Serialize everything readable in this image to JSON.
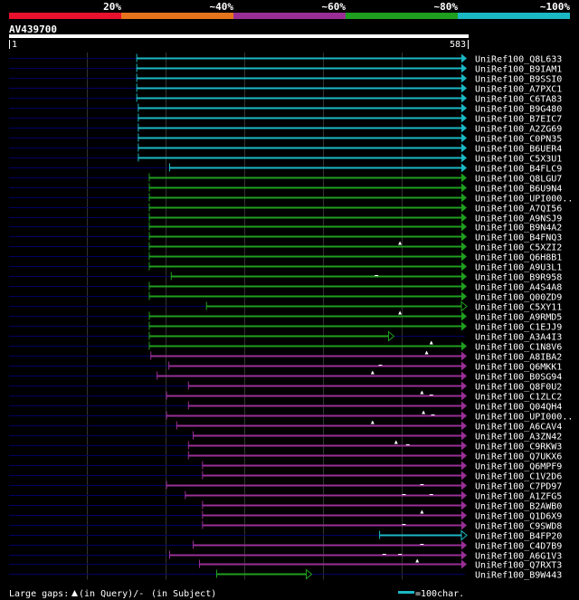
{
  "header": {
    "scale_labels": [
      "20%",
      "~40%",
      "~60%",
      "~80%",
      "~100%"
    ],
    "scale_colors": [
      "#e8112d",
      "#e6741c",
      "#992f96",
      "#1f9e1f",
      "#1bb8c4"
    ],
    "query_name": "AV439700",
    "ruler_start": "1",
    "ruler_end": "583"
  },
  "colors": {
    "cyan": "#1bb8c4",
    "green": "#1f9e1f",
    "purple": "#992f96",
    "guide": "#000066",
    "grid": "#333333"
  },
  "query_length": 583,
  "hits": [
    {
      "label": "UniRef100_Q8L633",
      "color": "cyan",
      "start": 164,
      "end": 583,
      "arrow": "filled",
      "marks": []
    },
    {
      "label": "UniRef100_B9IAM1",
      "color": "cyan",
      "start": 164,
      "end": 583,
      "arrow": "filled",
      "marks": []
    },
    {
      "label": "UniRef100_B9SSI0",
      "color": "cyan",
      "start": 164,
      "end": 583,
      "arrow": "filled",
      "marks": []
    },
    {
      "label": "UniRef100_A7PXC1",
      "color": "cyan",
      "start": 164,
      "end": 583,
      "arrow": "filled",
      "marks": []
    },
    {
      "label": "UniRef100_C6TA83",
      "color": "cyan",
      "start": 164,
      "end": 583,
      "arrow": "filled",
      "marks": []
    },
    {
      "label": "UniRef100_B9G480",
      "color": "cyan",
      "start": 166,
      "end": 583,
      "arrow": "filled",
      "marks": []
    },
    {
      "label": "UniRef100_B7EIC7",
      "color": "cyan",
      "start": 166,
      "end": 583,
      "arrow": "filled",
      "marks": []
    },
    {
      "label": "UniRef100_A2ZG69",
      "color": "cyan",
      "start": 166,
      "end": 583,
      "arrow": "filled",
      "marks": []
    },
    {
      "label": "UniRef100_C0PN35",
      "color": "cyan",
      "start": 166,
      "end": 583,
      "arrow": "filled",
      "marks": []
    },
    {
      "label": "UniRef100_B6UER4",
      "color": "cyan",
      "start": 166,
      "end": 583,
      "arrow": "filled",
      "marks": []
    },
    {
      "label": "UniRef100_C5X3U1",
      "color": "cyan",
      "start": 166,
      "end": 583,
      "arrow": "filled",
      "marks": []
    },
    {
      "label": "UniRef100_B4FLC9",
      "color": "cyan",
      "start": 206,
      "end": 583,
      "arrow": "filled",
      "marks": []
    },
    {
      "label": "UniRef100_Q8LGU7",
      "color": "green",
      "start": 180,
      "end": 583,
      "arrow": "filled",
      "marks": []
    },
    {
      "label": "UniRef100_B6U9N4",
      "color": "green",
      "start": 180,
      "end": 583,
      "arrow": "filled",
      "marks": []
    },
    {
      "label": "UniRef100_UPI000..",
      "color": "green",
      "start": 180,
      "end": 583,
      "arrow": "filled",
      "marks": []
    },
    {
      "label": "UniRef100_A7QI56",
      "color": "green",
      "start": 180,
      "end": 583,
      "arrow": "filled",
      "marks": []
    },
    {
      "label": "UniRef100_A9NSJ9",
      "color": "green",
      "start": 180,
      "end": 583,
      "arrow": "filled",
      "marks": []
    },
    {
      "label": "UniRef100_B9N4A2",
      "color": "green",
      "start": 180,
      "end": 583,
      "arrow": "filled",
      "marks": []
    },
    {
      "label": "UniRef100_B4FNQ3",
      "color": "green",
      "start": 180,
      "end": 583,
      "arrow": "filled",
      "marks": []
    },
    {
      "label": "UniRef100_C5XZI2",
      "color": "green",
      "start": 180,
      "end": 583,
      "arrow": "filled",
      "marks": [
        {
          "type": "tri",
          "pos": 500
        }
      ]
    },
    {
      "label": "UniRef100_Q6H8B1",
      "color": "green",
      "start": 180,
      "end": 583,
      "arrow": "filled",
      "marks": []
    },
    {
      "label": "UniRef100_A9U3L1",
      "color": "green",
      "start": 180,
      "end": 583,
      "arrow": "filled",
      "marks": []
    },
    {
      "label": "UniRef100_B9R958",
      "color": "green",
      "start": 208,
      "end": 583,
      "arrow": "filled",
      "marks": [
        {
          "type": "dash",
          "pos": 470
        }
      ]
    },
    {
      "label": "UniRef100_A4S4A8",
      "color": "green",
      "start": 180,
      "end": 583,
      "arrow": "filled",
      "marks": []
    },
    {
      "label": "UniRef100_Q00ZD9",
      "color": "green",
      "start": 180,
      "end": 583,
      "arrow": "filled",
      "marks": []
    },
    {
      "label": "UniRef100_C5XY11",
      "color": "green",
      "start": 253,
      "end": 583,
      "arrow": "outline",
      "marks": []
    },
    {
      "label": "UniRef100_A9RMD5",
      "color": "green",
      "start": 180,
      "end": 583,
      "arrow": "filled",
      "marks": [
        {
          "type": "tri",
          "pos": 500
        }
      ]
    },
    {
      "label": "UniRef100_C1EJJ9",
      "color": "green",
      "start": 180,
      "end": 583,
      "arrow": "filled",
      "marks": []
    },
    {
      "label": "UniRef100_A3A4I3",
      "color": "green",
      "start": 180,
      "end": 490,
      "arrow": "outline",
      "marks": []
    },
    {
      "label": "UniRef100_C1N8V6",
      "color": "green",
      "start": 180,
      "end": 583,
      "arrow": "filled",
      "marks": [
        {
          "type": "tri",
          "pos": 540
        }
      ]
    },
    {
      "label": "UniRef100_A8IBA2",
      "color": "purple",
      "start": 182,
      "end": 583,
      "arrow": "filled",
      "marks": [
        {
          "type": "tri",
          "pos": 534
        }
      ]
    },
    {
      "label": "UniRef100_Q6MKK1",
      "color": "purple",
      "start": 205,
      "end": 583,
      "arrow": "filled",
      "marks": [
        {
          "type": "dash",
          "pos": 475
        }
      ]
    },
    {
      "label": "UniRef100_B0SG94",
      "color": "purple",
      "start": 190,
      "end": 583,
      "arrow": "filled",
      "marks": [
        {
          "type": "tri",
          "pos": 465
        }
      ]
    },
    {
      "label": "UniRef100_Q8F0U2",
      "color": "purple",
      "start": 230,
      "end": 583,
      "arrow": "filled",
      "marks": []
    },
    {
      "label": "UniRef100_C1ZLC2",
      "color": "purple",
      "start": 202,
      "end": 583,
      "arrow": "filled",
      "marks": [
        {
          "type": "tri",
          "pos": 528
        },
        {
          "type": "dash",
          "pos": 540
        }
      ]
    },
    {
      "label": "UniRef100_Q04QH4",
      "color": "purple",
      "start": 230,
      "end": 583,
      "arrow": "filled",
      "marks": []
    },
    {
      "label": "UniRef100_UPI000..",
      "color": "purple",
      "start": 202,
      "end": 583,
      "arrow": "filled",
      "marks": [
        {
          "type": "tri",
          "pos": 530
        },
        {
          "type": "dash",
          "pos": 542
        }
      ]
    },
    {
      "label": "UniRef100_A6CAV4",
      "color": "purple",
      "start": 215,
      "end": 583,
      "arrow": "filled",
      "marks": [
        {
          "type": "tri",
          "pos": 465
        }
      ]
    },
    {
      "label": "UniRef100_A3ZN42",
      "color": "purple",
      "start": 236,
      "end": 583,
      "arrow": "filled",
      "marks": []
    },
    {
      "label": "UniRef100_C9RKW3",
      "color": "purple",
      "start": 230,
      "end": 583,
      "arrow": "filled",
      "marks": [
        {
          "type": "tri",
          "pos": 495
        },
        {
          "type": "dash",
          "pos": 510
        }
      ]
    },
    {
      "label": "UniRef100_Q7UKX6",
      "color": "purple",
      "start": 230,
      "end": 583,
      "arrow": "filled",
      "marks": []
    },
    {
      "label": "UniRef100_Q6MPF9",
      "color": "purple",
      "start": 248,
      "end": 583,
      "arrow": "filled",
      "marks": []
    },
    {
      "label": "UniRef100_C1V2D6",
      "color": "purple",
      "start": 248,
      "end": 583,
      "arrow": "filled",
      "marks": []
    },
    {
      "label": "UniRef100_C7PD97",
      "color": "purple",
      "start": 202,
      "end": 583,
      "arrow": "filled",
      "marks": [
        {
          "type": "dash",
          "pos": 528
        }
      ]
    },
    {
      "label": "UniRef100_A1ZFG5",
      "color": "purple",
      "start": 226,
      "end": 583,
      "arrow": "filled",
      "marks": [
        {
          "type": "dash",
          "pos": 505
        },
        {
          "type": "dash",
          "pos": 540
        }
      ]
    },
    {
      "label": "UniRef100_B2AWB0",
      "color": "purple",
      "start": 248,
      "end": 583,
      "arrow": "filled",
      "marks": []
    },
    {
      "label": "UniRef100_Q1D6X9",
      "color": "purple",
      "start": 248,
      "end": 583,
      "arrow": "filled",
      "marks": [
        {
          "type": "tri",
          "pos": 528
        }
      ]
    },
    {
      "label": "UniRef100_C9SWD8",
      "color": "purple",
      "start": 248,
      "end": 583,
      "arrow": "filled",
      "marks": [
        {
          "type": "dash",
          "pos": 505
        }
      ]
    },
    {
      "label": "UniRef100_B4FP20",
      "color": "cyan",
      "start": 474,
      "end": 583,
      "arrow": "outline",
      "marks": []
    },
    {
      "label": "UniRef100_C4D7B9",
      "color": "purple",
      "start": 236,
      "end": 583,
      "arrow": "filled",
      "marks": [
        {
          "type": "dash",
          "pos": 528
        }
      ]
    },
    {
      "label": "UniRef100_A6G1V3",
      "color": "purple",
      "start": 206,
      "end": 583,
      "arrow": "filled",
      "marks": [
        {
          "type": "dash",
          "pos": 480
        },
        {
          "type": "dash",
          "pos": 500
        }
      ]
    },
    {
      "label": "UniRef100_Q7RXT3",
      "color": "purple",
      "start": 244,
      "end": 583,
      "arrow": "filled",
      "marks": [
        {
          "type": "tri",
          "pos": 522
        }
      ]
    },
    {
      "label": "UniRef100_B9W443",
      "color": "green",
      "start": 266,
      "end": 385,
      "arrow": "outline",
      "marks": []
    }
  ],
  "footer": {
    "legend_text": "Large gaps:",
    "query_gap_text": "(in Query)/-",
    "subject_gap_text": "(in Subject)",
    "scale_text": "=100char."
  }
}
